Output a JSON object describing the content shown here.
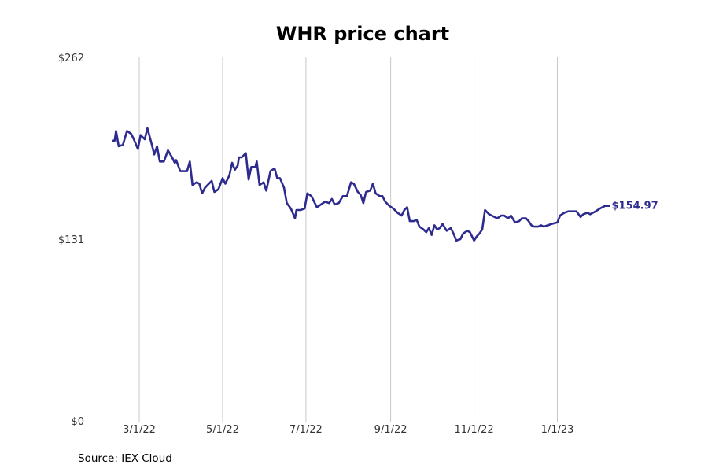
{
  "chart_data": {
    "type": "line",
    "title": "WHR price chart",
    "source": "Source: IEX Cloud",
    "xlabel": "",
    "ylabel": "",
    "x_range": [
      "2022-02-10",
      "2023-02-10"
    ],
    "ylim": [
      0,
      262
    ],
    "y_ticks": [
      {
        "value": 0,
        "label": "$0"
      },
      {
        "value": 131,
        "label": "$131"
      },
      {
        "value": 262,
        "label": "$262"
      }
    ],
    "x_ticks": [
      {
        "date": "2022-03-01",
        "label": "3/1/22"
      },
      {
        "date": "2022-05-01",
        "label": "5/1/22"
      },
      {
        "date": "2022-07-01",
        "label": "7/1/22"
      },
      {
        "date": "2022-09-01",
        "label": "9/1/22"
      },
      {
        "date": "2022-11-01",
        "label": "11/1/22"
      },
      {
        "date": "2023-01-01",
        "label": "1/1/23"
      }
    ],
    "vertical_grid": true,
    "horizontal_grid": false,
    "line_color": "#2e2b8f",
    "last_value_label": "$154.97",
    "series": [
      {
        "values": [
          [
            "2022-02-10",
            202
          ],
          [
            "2022-02-11",
            202
          ],
          [
            "2022-02-12",
            209
          ],
          [
            "2022-02-14",
            198
          ],
          [
            "2022-02-17",
            199
          ],
          [
            "2022-02-20",
            209
          ],
          [
            "2022-02-23",
            207
          ],
          [
            "2022-02-25",
            203
          ],
          [
            "2022-02-28",
            196
          ],
          [
            "2022-03-02",
            206
          ],
          [
            "2022-03-05",
            203
          ],
          [
            "2022-03-07",
            211
          ],
          [
            "2022-03-10",
            200
          ],
          [
            "2022-03-12",
            192
          ],
          [
            "2022-03-14",
            198
          ],
          [
            "2022-03-16",
            187
          ],
          [
            "2022-03-19",
            187
          ],
          [
            "2022-03-22",
            195
          ],
          [
            "2022-03-25",
            190
          ],
          [
            "2022-03-27",
            186
          ],
          [
            "2022-03-28",
            188
          ],
          [
            "2022-03-31",
            180
          ],
          [
            "2022-04-03",
            180
          ],
          [
            "2022-04-05",
            180
          ],
          [
            "2022-04-07",
            187
          ],
          [
            "2022-04-09",
            170
          ],
          [
            "2022-04-12",
            172
          ],
          [
            "2022-04-14",
            171
          ],
          [
            "2022-04-16",
            164
          ],
          [
            "2022-04-18",
            168
          ],
          [
            "2022-04-20",
            170
          ],
          [
            "2022-04-23",
            173
          ],
          [
            "2022-04-25",
            165
          ],
          [
            "2022-04-28",
            167
          ],
          [
            "2022-05-01",
            175
          ],
          [
            "2022-05-03",
            171
          ],
          [
            "2022-05-06",
            177
          ],
          [
            "2022-05-08",
            186
          ],
          [
            "2022-05-10",
            181
          ],
          [
            "2022-05-12",
            184
          ],
          [
            "2022-05-13",
            190
          ],
          [
            "2022-05-15",
            190
          ],
          [
            "2022-05-18",
            193
          ],
          [
            "2022-05-20",
            174
          ],
          [
            "2022-05-22",
            183
          ],
          [
            "2022-05-25",
            183
          ],
          [
            "2022-05-26",
            187
          ],
          [
            "2022-05-28",
            170
          ],
          [
            "2022-05-31",
            172
          ],
          [
            "2022-06-02",
            166
          ],
          [
            "2022-06-05",
            180
          ],
          [
            "2022-06-08",
            182
          ],
          [
            "2022-06-10",
            175
          ],
          [
            "2022-06-12",
            175
          ],
          [
            "2022-06-15",
            168
          ],
          [
            "2022-06-17",
            157
          ],
          [
            "2022-06-20",
            153
          ],
          [
            "2022-06-23",
            146
          ],
          [
            "2022-06-24",
            152
          ],
          [
            "2022-06-27",
            152
          ],
          [
            "2022-06-30",
            153
          ],
          [
            "2022-07-02",
            164
          ],
          [
            "2022-07-05",
            162
          ],
          [
            "2022-07-09",
            154
          ],
          [
            "2022-07-12",
            156
          ],
          [
            "2022-07-15",
            158
          ],
          [
            "2022-07-18",
            157
          ],
          [
            "2022-07-20",
            160
          ],
          [
            "2022-07-22",
            156
          ],
          [
            "2022-07-25",
            157
          ],
          [
            "2022-07-28",
            162
          ],
          [
            "2022-07-31",
            162
          ],
          [
            "2022-08-03",
            172
          ],
          [
            "2022-08-05",
            171
          ],
          [
            "2022-08-08",
            165
          ],
          [
            "2022-08-10",
            163
          ],
          [
            "2022-08-12",
            157
          ],
          [
            "2022-08-14",
            165
          ],
          [
            "2022-08-17",
            166
          ],
          [
            "2022-08-19",
            171
          ],
          [
            "2022-08-21",
            164
          ],
          [
            "2022-08-24",
            162
          ],
          [
            "2022-08-26",
            162
          ],
          [
            "2022-08-28",
            158
          ],
          [
            "2022-08-31",
            155
          ],
          [
            "2022-09-03",
            153
          ],
          [
            "2022-09-06",
            150
          ],
          [
            "2022-09-09",
            148
          ],
          [
            "2022-09-11",
            152
          ],
          [
            "2022-09-13",
            154
          ],
          [
            "2022-09-15",
            144
          ],
          [
            "2022-09-18",
            144
          ],
          [
            "2022-09-20",
            145
          ],
          [
            "2022-09-22",
            140
          ],
          [
            "2022-09-25",
            138
          ],
          [
            "2022-09-27",
            136
          ],
          [
            "2022-09-29",
            139
          ],
          [
            "2022-10-01",
            134
          ],
          [
            "2022-10-03",
            141
          ],
          [
            "2022-10-05",
            138
          ],
          [
            "2022-10-07",
            139
          ],
          [
            "2022-10-09",
            142
          ],
          [
            "2022-10-12",
            137
          ],
          [
            "2022-10-15",
            139
          ],
          [
            "2022-10-17",
            135
          ],
          [
            "2022-10-19",
            130
          ],
          [
            "2022-10-22",
            131
          ],
          [
            "2022-10-24",
            135
          ],
          [
            "2022-10-27",
            137
          ],
          [
            "2022-10-29",
            136
          ],
          [
            "2022-11-01",
            130
          ],
          [
            "2022-11-03",
            133
          ],
          [
            "2022-11-05",
            135
          ],
          [
            "2022-11-07",
            138
          ],
          [
            "2022-11-09",
            152
          ],
          [
            "2022-11-12",
            149
          ],
          [
            "2022-11-14",
            148
          ],
          [
            "2022-11-16",
            147
          ],
          [
            "2022-11-18",
            146
          ],
          [
            "2022-11-21",
            148
          ],
          [
            "2022-11-23",
            148
          ],
          [
            "2022-11-26",
            146
          ],
          [
            "2022-11-28",
            148
          ],
          [
            "2022-12-01",
            143
          ],
          [
            "2022-12-04",
            144
          ],
          [
            "2022-12-06",
            146
          ],
          [
            "2022-12-09",
            146
          ],
          [
            "2022-12-11",
            144
          ],
          [
            "2022-12-13",
            141
          ],
          [
            "2022-12-15",
            140
          ],
          [
            "2022-12-18",
            140
          ],
          [
            "2022-12-20",
            141
          ],
          [
            "2022-12-22",
            140
          ],
          [
            "2022-12-25",
            141
          ],
          [
            "2022-12-28",
            142
          ],
          [
            "2023-01-01",
            143
          ],
          [
            "2023-01-03",
            148
          ],
          [
            "2023-01-06",
            150
          ],
          [
            "2023-01-09",
            151
          ],
          [
            "2023-01-12",
            151
          ],
          [
            "2023-01-15",
            151
          ],
          [
            "2023-01-18",
            147
          ],
          [
            "2023-01-20",
            149
          ],
          [
            "2023-01-23",
            150
          ],
          [
            "2023-01-25",
            149
          ],
          [
            "2023-01-27",
            150
          ],
          [
            "2023-01-29",
            151
          ],
          [
            "2023-02-01",
            153
          ],
          [
            "2023-02-03",
            154
          ],
          [
            "2023-02-05",
            155
          ],
          [
            "2023-02-08",
            154.97
          ]
        ]
      }
    ]
  }
}
